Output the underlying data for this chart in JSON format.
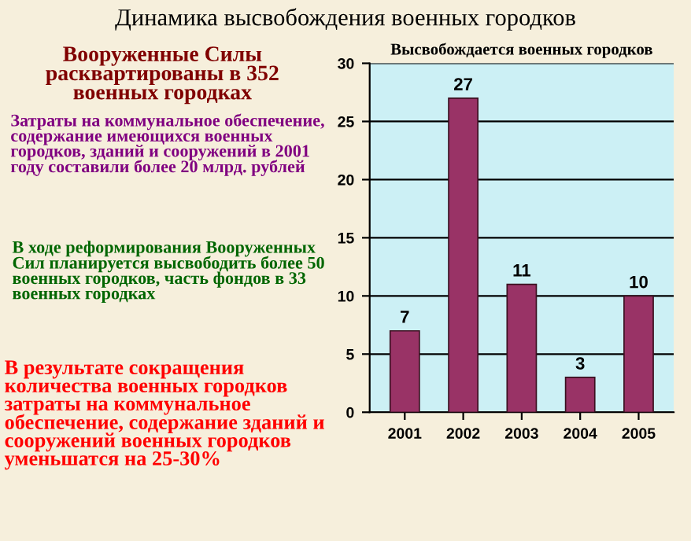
{
  "chart_data": {
    "type": "bar",
    "title": "Динамика высвобождения военных городков",
    "subtitle": "Высвобождается военных городков",
    "categories": [
      "2001",
      "2002",
      "2003",
      "2004",
      "2005"
    ],
    "values": [
      7,
      27,
      11,
      3,
      10
    ],
    "color": "#993366",
    "ylim": [
      0,
      30
    ],
    "yticks": [
      0,
      5,
      10,
      15,
      20,
      25,
      30
    ],
    "grid": "y",
    "data_labels": true,
    "annotations": [
      "Вооруженные Силы расквартированы в 352 военных городках",
      "Затраты на коммунальное обеспечение, содержание имеющихся военных городков, зданий и сооружений в 2001 году составили более 20 млрд. рублей",
      "В ходе реформирования Вооруженных Сил планируется высвободить более 50 военных городков, часть фондов в 33 военных городках",
      "В результате сокращения количества военных городков затраты на коммунальное обеспечение, содержание зданий и сооружений военных городков уменьшатся на 25-30%"
    ]
  }
}
